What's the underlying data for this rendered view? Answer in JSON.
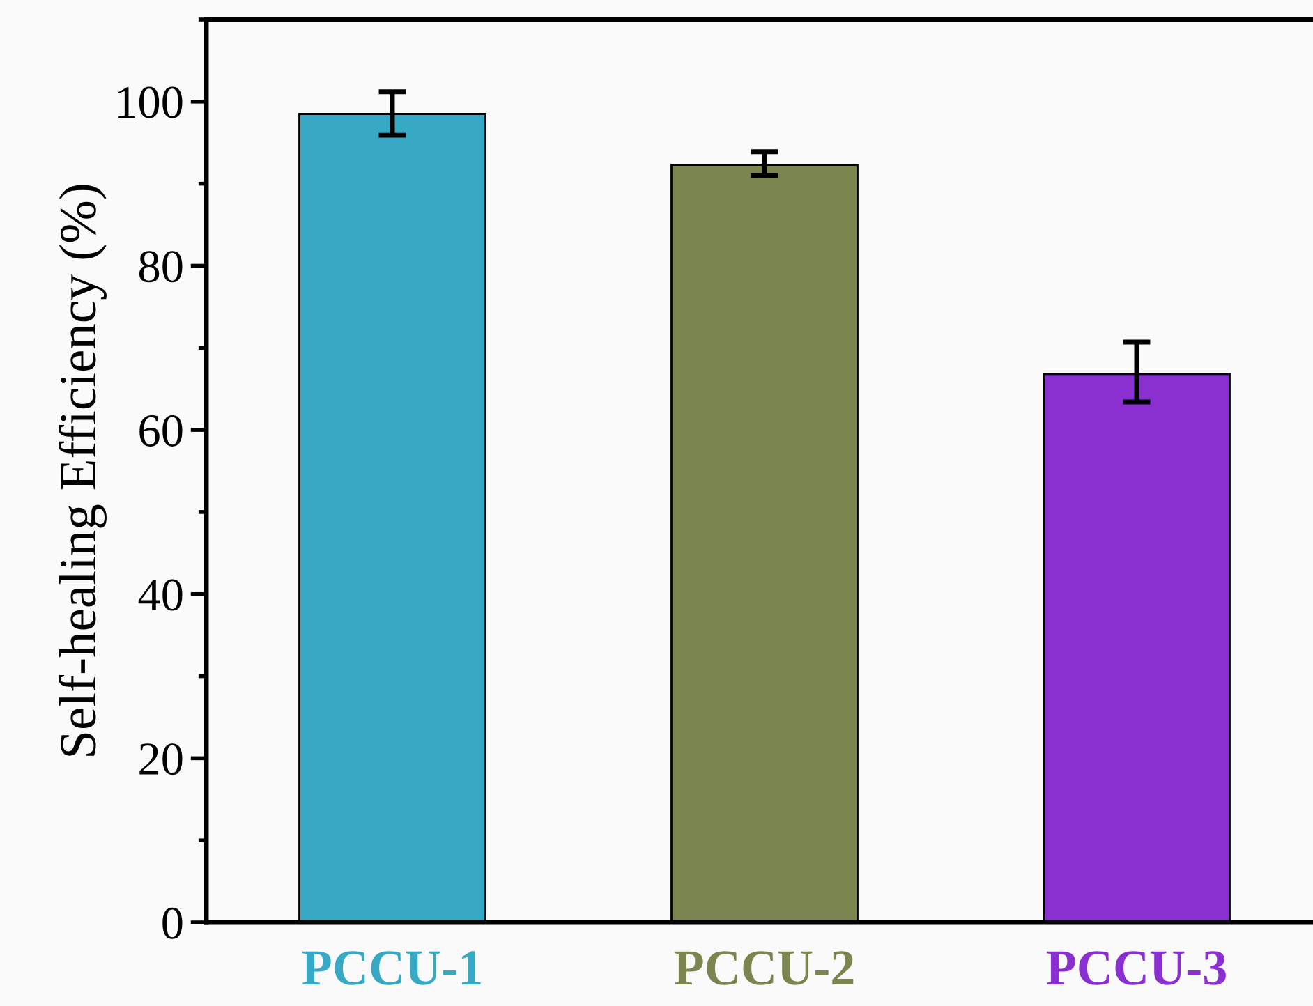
{
  "chart_data": {
    "type": "bar",
    "ylabel": "Self-healing Efficiency (%)",
    "categories": [
      "PCCU-1",
      "PCCU-2",
      "PCCU-3"
    ],
    "values": [
      98.5,
      92.3,
      66.8
    ],
    "errors": [
      [
        95.9,
        101.2
      ],
      [
        91.0,
        93.9
      ],
      [
        63.4,
        70.7
      ]
    ],
    "colors": [
      "#37a9c4",
      "#7b8550",
      "#8a2fd0"
    ],
    "ylim": [
      0,
      110
    ],
    "yticks": [
      0,
      20,
      40,
      60,
      80,
      100
    ],
    "grid": false,
    "legend": false
  }
}
